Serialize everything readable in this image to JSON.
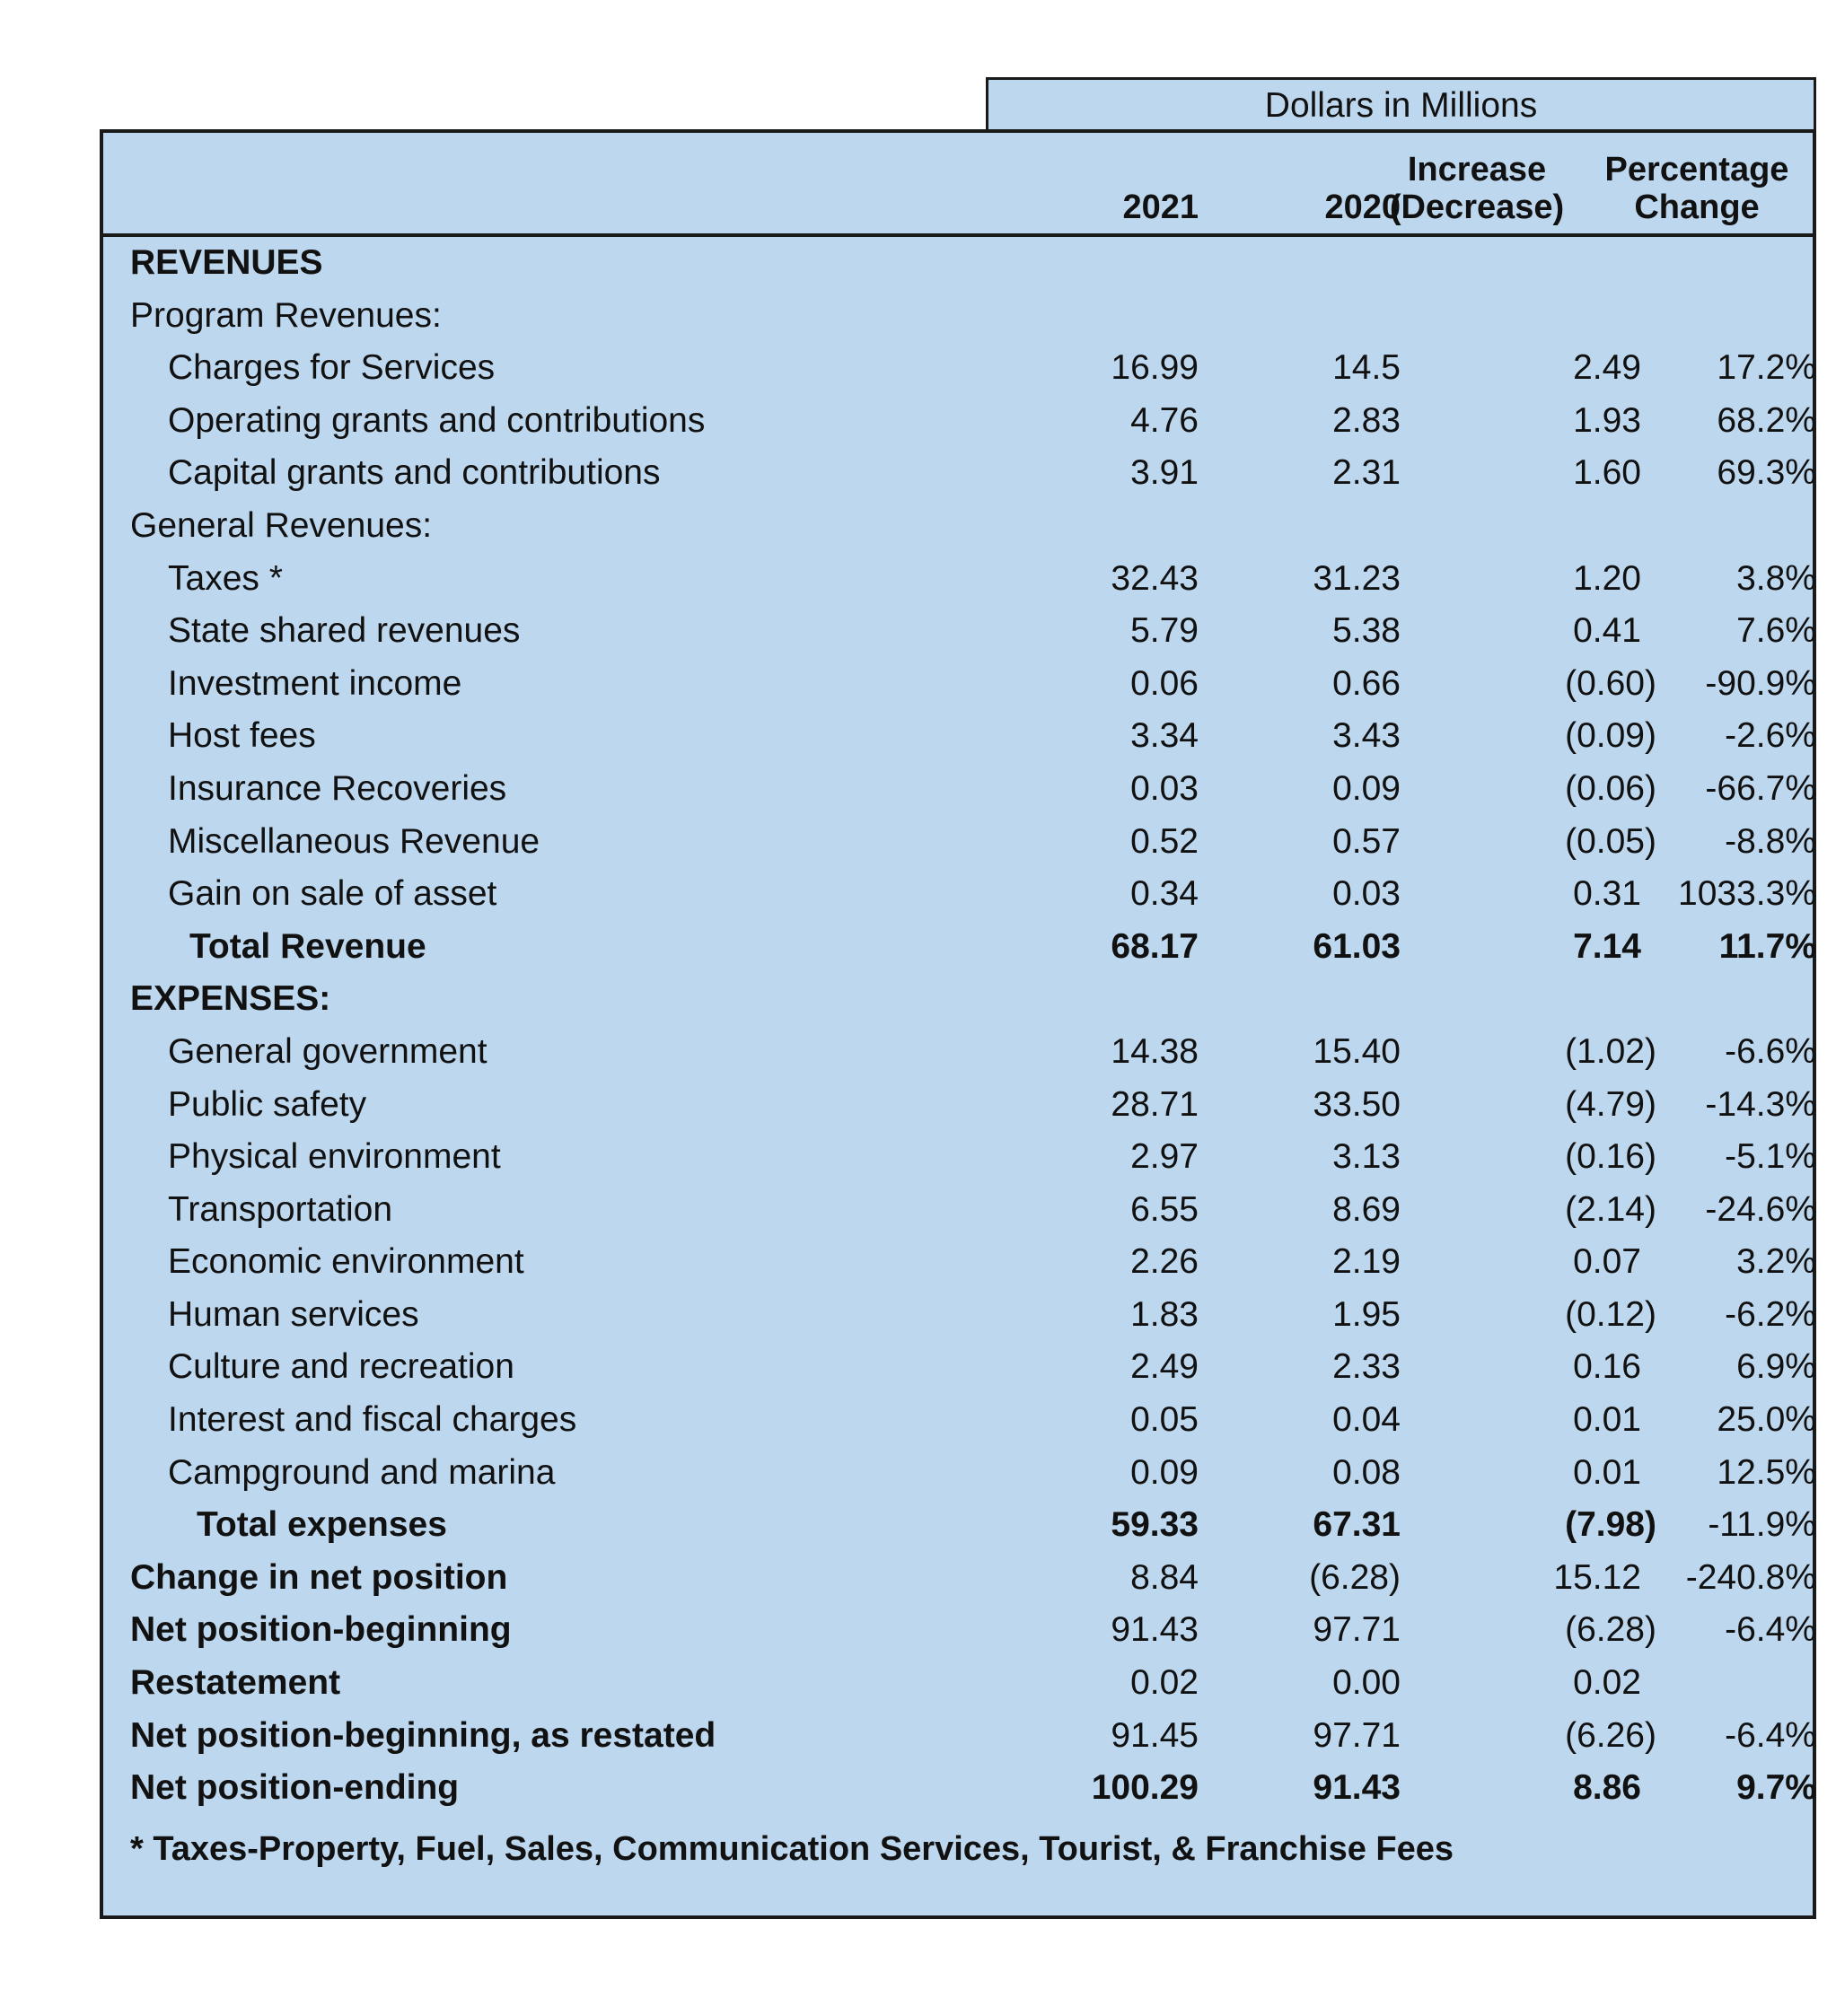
{
  "table": {
    "super_header": "Dollars in Millions",
    "columns": {
      "y2021": "2021",
      "y2020": "2020",
      "increase_line1": "Increase",
      "increase_line2": "(Decrease)",
      "pct_line1": "Percentage",
      "pct_line2": "Change"
    },
    "sections": {
      "revenues": "REVENUES",
      "program_revenues": "Program Revenues:",
      "general_revenues": "General Revenues:",
      "expenses": "EXPENSES:"
    },
    "rows": {
      "charges_for_services": {
        "label": "Charges for Services",
        "v2021": "16.99",
        "v2020": "14.5",
        "change": "2.49",
        "pct": "17.2%"
      },
      "operating_grants": {
        "label": "Operating grants and contributions",
        "v2021": "4.76",
        "v2020": "2.83",
        "change": "1.93",
        "pct": "68.2%"
      },
      "capital_grants": {
        "label": "Capital grants and contributions",
        "v2021": "3.91",
        "v2020": "2.31",
        "change": "1.60",
        "pct": "69.3%"
      },
      "taxes": {
        "label": "Taxes *",
        "v2021": "32.43",
        "v2020": "31.23",
        "change": "1.20",
        "pct": "3.8%"
      },
      "state_shared": {
        "label": "State shared revenues",
        "v2021": "5.79",
        "v2020": "5.38",
        "change": "0.41",
        "pct": "7.6%"
      },
      "investment_income": {
        "label": "Investment income",
        "v2021": "0.06",
        "v2020": "0.66",
        "change": "(0.60)",
        "pct": "-90.9%"
      },
      "host_fees": {
        "label": "Host fees",
        "v2021": "3.34",
        "v2020": "3.43",
        "change": "(0.09)",
        "pct": "-2.6%"
      },
      "insurance_recoveries": {
        "label": "Insurance Recoveries",
        "v2021": "0.03",
        "v2020": "0.09",
        "change": "(0.06)",
        "pct": "-66.7%"
      },
      "misc_revenue": {
        "label": "Miscellaneous Revenue",
        "v2021": "0.52",
        "v2020": "0.57",
        "change": "(0.05)",
        "pct": "-8.8%"
      },
      "gain_on_sale": {
        "label": "Gain on sale of asset",
        "v2021": "0.34",
        "v2020": "0.03",
        "change": "0.31",
        "pct": "1033.3%"
      },
      "total_revenue": {
        "label": "Total Revenue",
        "v2021": "68.17",
        "v2020": "61.03",
        "change": "7.14",
        "pct": "11.7%"
      },
      "general_government": {
        "label": "General government",
        "v2021": "14.38",
        "v2020": "15.40",
        "change": "(1.02)",
        "pct": "-6.6%"
      },
      "public_safety": {
        "label": "Public safety",
        "v2021": "28.71",
        "v2020": "33.50",
        "change": "(4.79)",
        "pct": "-14.3%"
      },
      "physical_environment": {
        "label": "Physical environment",
        "v2021": "2.97",
        "v2020": "3.13",
        "change": "(0.16)",
        "pct": "-5.1%"
      },
      "transportation": {
        "label": "Transportation",
        "v2021": "6.55",
        "v2020": "8.69",
        "change": "(2.14)",
        "pct": "-24.6%"
      },
      "economic_environment": {
        "label": "Economic environment",
        "v2021": "2.26",
        "v2020": "2.19",
        "change": "0.07",
        "pct": "3.2%"
      },
      "human_services": {
        "label": "Human services",
        "v2021": "1.83",
        "v2020": "1.95",
        "change": "(0.12)",
        "pct": "-6.2%"
      },
      "culture_recreation": {
        "label": "Culture and recreation",
        "v2021": "2.49",
        "v2020": "2.33",
        "change": "0.16",
        "pct": "6.9%"
      },
      "interest_fiscal": {
        "label": "Interest and fiscal charges",
        "v2021": "0.05",
        "v2020": "0.04",
        "change": "0.01",
        "pct": "25.0%"
      },
      "campground_marina": {
        "label": "Campground and marina",
        "v2021": "0.09",
        "v2020": "0.08",
        "change": "0.01",
        "pct": "12.5%"
      },
      "total_expenses": {
        "label": "Total expenses",
        "v2021": "59.33",
        "v2020": "67.31",
        "change": "(7.98)",
        "pct": "-11.9%"
      },
      "change_net_position": {
        "label": "Change in net position",
        "v2021": "8.84",
        "v2020": "(6.28)",
        "change": "15.12",
        "pct": "-240.8%"
      },
      "net_position_beginning": {
        "label": "Net position-beginning",
        "v2021": "91.43",
        "v2020": "97.71",
        "change": "(6.28)",
        "pct": "-6.4%"
      },
      "restatement": {
        "label": "Restatement",
        "v2021": "0.02",
        "v2020": "0.00",
        "change": "0.02",
        "pct": ""
      },
      "net_position_restated": {
        "label": "Net position-beginning, as restated",
        "v2021": "91.45",
        "v2020": "97.71",
        "change": "(6.26)",
        "pct": "-6.4%"
      },
      "net_position_ending": {
        "label": "Net position-ending",
        "v2021": "100.29",
        "v2020": "91.43",
        "change": "8.86",
        "pct": "9.7%"
      }
    },
    "footnote": "* Taxes-Property, Fuel, Sales, Communication Services, Tourist, & Franchise Fees"
  }
}
